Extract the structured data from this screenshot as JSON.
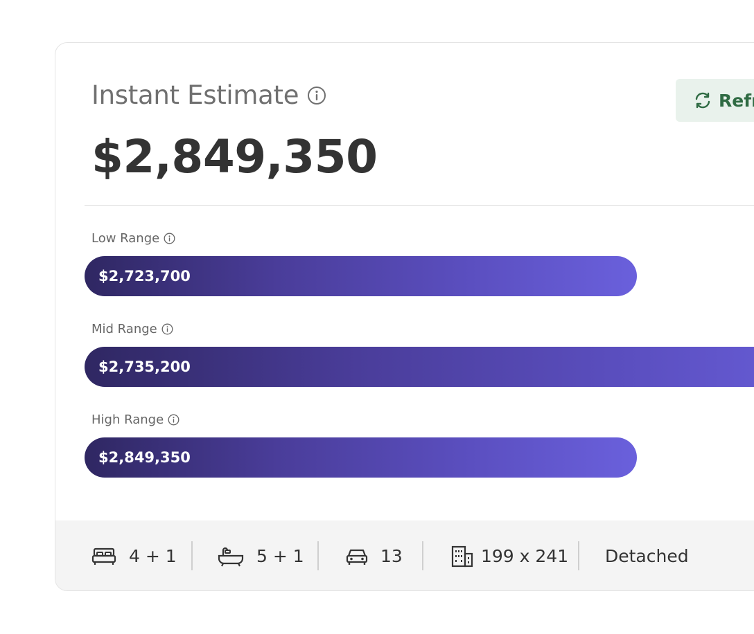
{
  "header": {
    "title": "Instant Estimate",
    "price": "$2,849,350",
    "refresh_label": "Refr"
  },
  "ranges": [
    {
      "label": "Low Range",
      "value": "$2,723,700",
      "fill_fraction": 0.71
    },
    {
      "label": "Mid Range",
      "value": "$2,735,200",
      "fill_fraction": 1.0
    },
    {
      "label": "High Range",
      "value": "$2,849,350",
      "fill_fraction": 0.71
    }
  ],
  "features": {
    "bedrooms": "4 + 1",
    "bathrooms": "5 + 1",
    "parking": "13",
    "lot_size": "199 x 241",
    "type": "Detached"
  },
  "colors": {
    "bar_start": "#2f2762",
    "bar_end": "#6a60dc",
    "refresh_bg": "#e9f2ec",
    "refresh_text": "#2f6b43"
  },
  "icons": [
    "info-icon",
    "refresh-icon",
    "bed-icon",
    "bathtub-icon",
    "car-icon",
    "building-icon"
  ]
}
